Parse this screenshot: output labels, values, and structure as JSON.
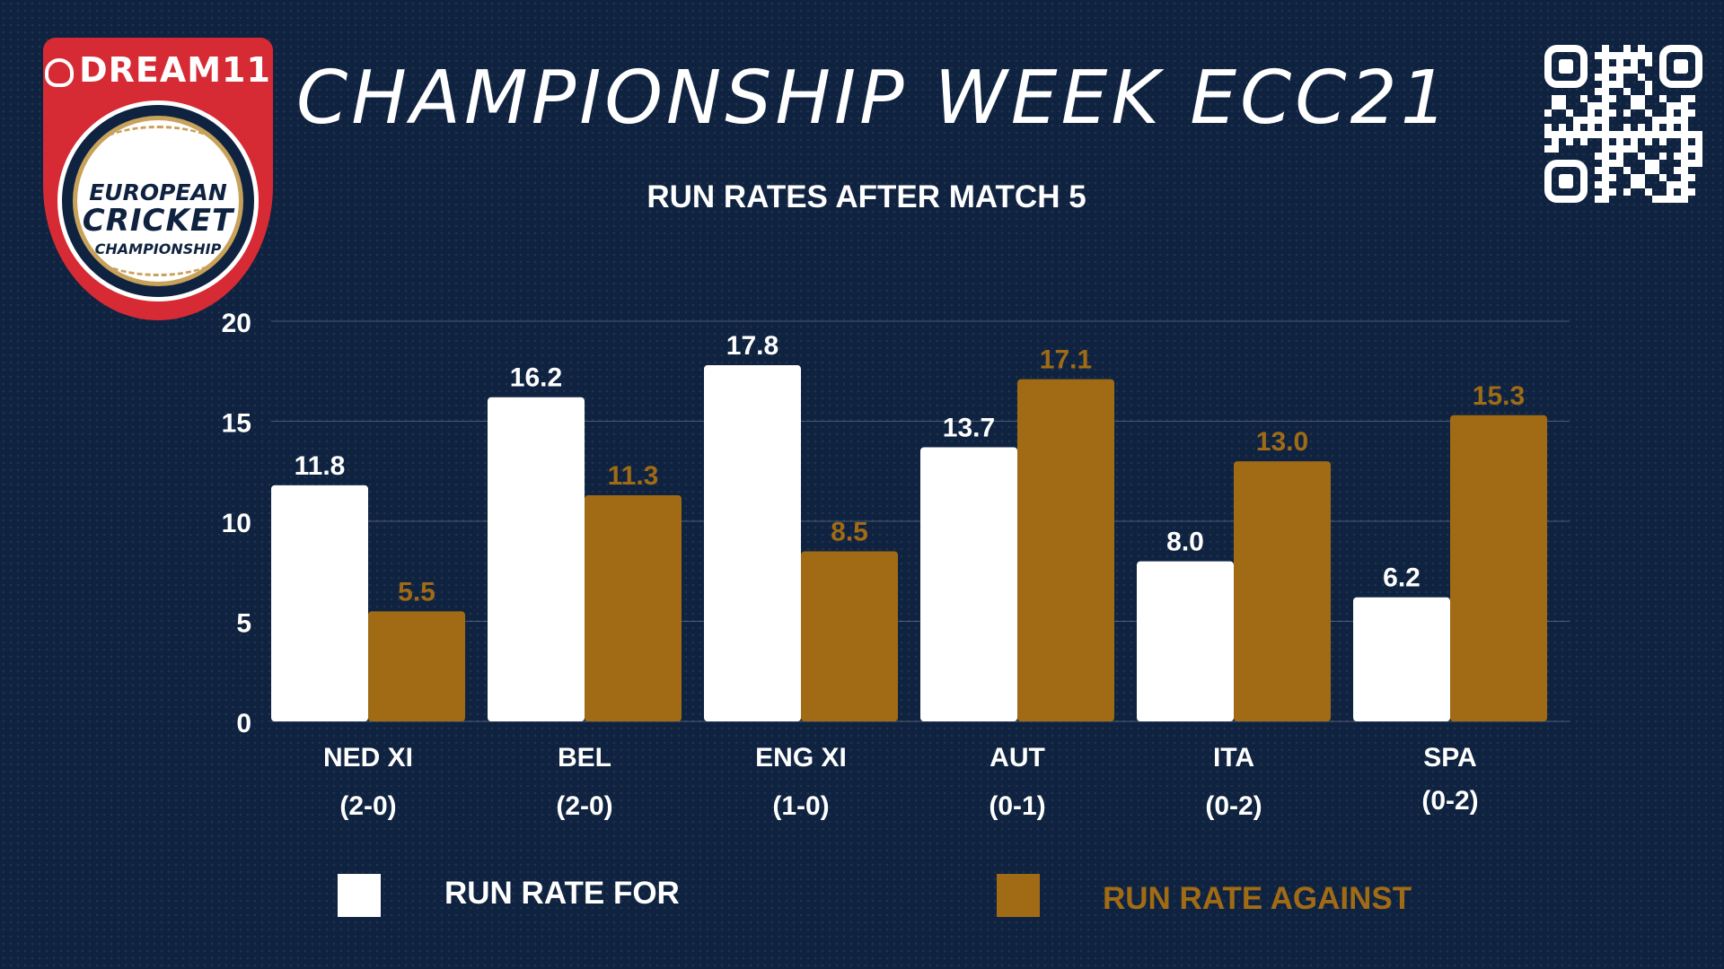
{
  "logo": {
    "brand": "DREAM11",
    "line1": "EUROPEAN",
    "line2": "CRICKET",
    "line3": "CHAMPIONSHIP"
  },
  "title": "CHAMPIONSHIP WEEK ECC21",
  "qr_icon": "qr-code-icon",
  "colors": {
    "background": "#0f2340",
    "run_rate_for": "#ffffff",
    "run_rate_against": "#a06b14",
    "logo_red": "#d62b34"
  },
  "chart_data": {
    "type": "bar",
    "title": "RUN RATES AFTER MATCH 5",
    "categories": [
      "NED XI",
      "BEL",
      "ENG XI",
      "AUT",
      "ITA",
      "SPA"
    ],
    "records": [
      "(2-0)",
      "(2-0)",
      "(1-0)",
      "(0-1)",
      "(0-2)",
      "(0-2)"
    ],
    "series": [
      {
        "name": "RUN RATE FOR",
        "values": [
          11.8,
          16.2,
          17.8,
          13.7,
          8.0,
          6.2
        ],
        "labels": [
          "11.8",
          "16.2",
          "17.8",
          "13.7",
          "8.0",
          "6.2"
        ]
      },
      {
        "name": "RUN RATE AGAINST",
        "values": [
          5.5,
          11.3,
          8.5,
          17.1,
          13.0,
          15.3
        ],
        "labels": [
          "5.5",
          "11.3",
          "8.5",
          "17.1",
          "13.0",
          "15.3"
        ]
      }
    ],
    "yticks": [
      "0",
      "5",
      "10",
      "15",
      "20"
    ],
    "ylim": [
      0,
      20
    ],
    "grid": true,
    "legend_position": "bottom"
  }
}
